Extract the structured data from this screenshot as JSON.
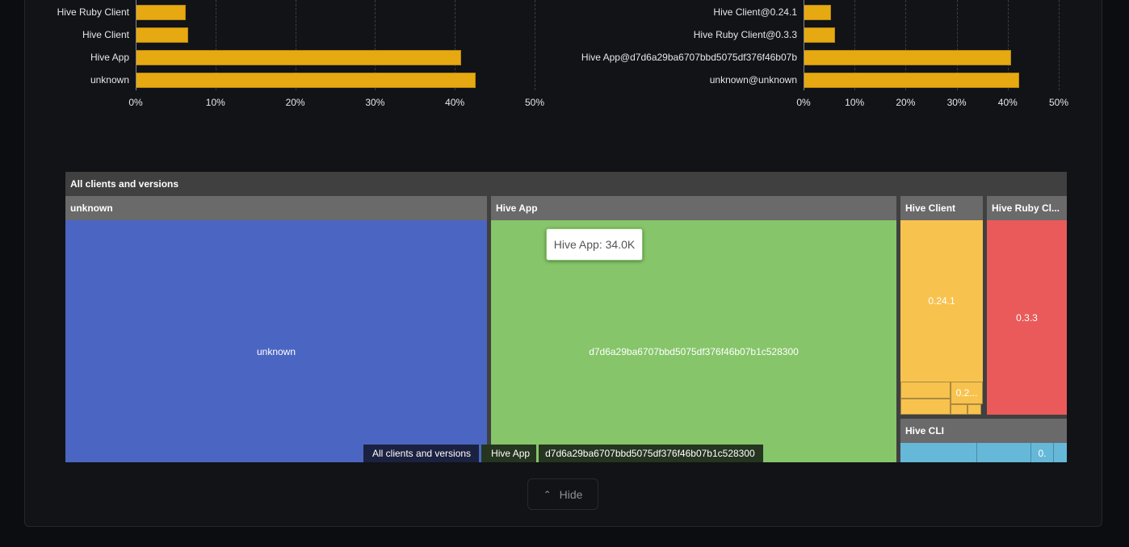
{
  "chart_data": [
    {
      "type": "bar",
      "orientation": "horizontal",
      "categories": [
        "Hive Ruby Client",
        "Hive Client",
        "Hive App",
        "unknown"
      ],
      "values": [
        6.3,
        6.6,
        40.8,
        42.6
      ],
      "xlim": [
        0,
        50
      ],
      "tick_labels": [
        "0%",
        "10%",
        "20%",
        "30%",
        "40%",
        "50%"
      ],
      "grid": true,
      "color": "#e6a911"
    },
    {
      "type": "bar",
      "orientation": "horizontal",
      "categories": [
        "Hive Client@0.24.1",
        "Hive Ruby Client@0.3.3",
        "Hive App@d7d6a29ba6707bbd5075df376f46b07b",
        "unknown@unknown"
      ],
      "values": [
        5.4,
        6.2,
        40.7,
        42.2
      ],
      "xlim": [
        0,
        50
      ],
      "tick_labels": [
        "0%",
        "10%",
        "20%",
        "30%",
        "40%",
        "50%"
      ],
      "grid": true,
      "color": "#e6a911"
    }
  ],
  "treemap": {
    "root": "All clients and versions",
    "groups": [
      {
        "name": "unknown",
        "color": "#4a66c2",
        "items": [
          "unknown"
        ]
      },
      {
        "name": "Hive App",
        "color": "#86c56a",
        "items": [
          "d7d6a29ba6707bbd5075df376f46b07b1c528300"
        ]
      },
      {
        "name": "Hive Client",
        "color": "#f8c24e",
        "items": [
          "0.24.1",
          "0.2..."
        ]
      },
      {
        "name": "Hive Ruby Cl...",
        "color": "#ea5a5a",
        "items": [
          "0.3.3"
        ]
      },
      {
        "name": "Hive CLI",
        "color": "#66b8d9",
        "items": [
          "0."
        ]
      }
    ],
    "tooltip": "Hive App: 34.0K",
    "breadcrumb": [
      "All clients and versions",
      "Hive App",
      "d7d6a29ba6707bbd5075df376f46b07b1c528300"
    ]
  },
  "hide_label": "Hide"
}
